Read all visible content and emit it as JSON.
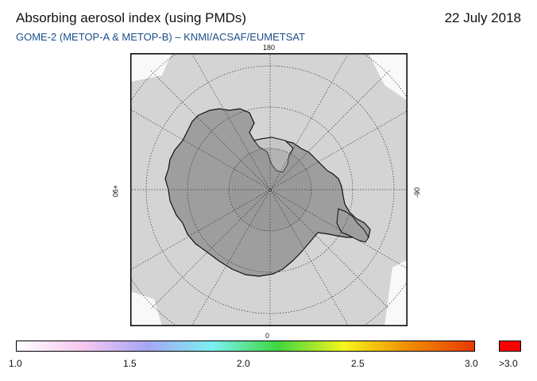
{
  "header": {
    "title": "Absorbing aerosol index (using PMDs)",
    "date": "22 July 2018",
    "subtitle": "GOME-2 (METOP-A & METOP-B)  –  KNMI/ACSAF/EUMETSAT"
  },
  "map": {
    "projection": "south polar stereographic",
    "longitude_labels": {
      "top": "180",
      "bottom": "0",
      "left": "+90",
      "right": "-90"
    },
    "colors": {
      "no_data_background": "#d4d4d4",
      "land": "#9e9e9e",
      "coastline": "#111111",
      "graticule": "#333333"
    }
  },
  "colorbar": {
    "tick_labels": [
      "1.0",
      "1.5",
      "2.0",
      "2.5",
      "3.0"
    ],
    "overflow_label": ">3.0",
    "overflow_color": "#ff0000",
    "gradient_colors": [
      "#ffffff",
      "#f7c8f0",
      "#a6a6f5",
      "#7bf0f0",
      "#3ed63e",
      "#f5f51e",
      "#f08c00",
      "#e83a00"
    ]
  }
}
